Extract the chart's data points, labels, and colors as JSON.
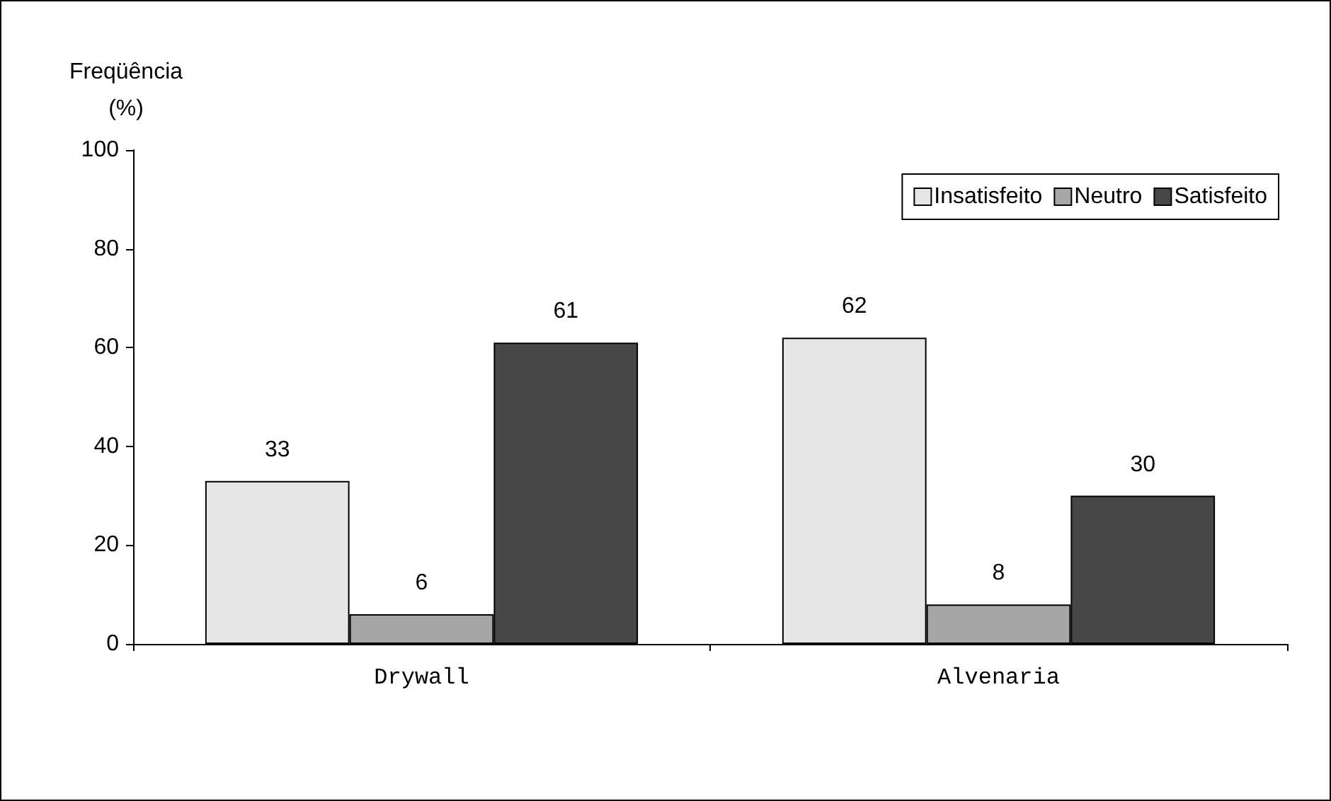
{
  "chart_data": {
    "type": "bar",
    "ylabel": "Freqüência (%)",
    "categories": [
      "Drywall",
      "Alvenaria"
    ],
    "series": [
      {
        "name": "Insatisfeito",
        "color": "#e6e6e6",
        "values": [
          33,
          62
        ]
      },
      {
        "name": "Neutro",
        "color": "#a6a6a6",
        "values": [
          6,
          8
        ]
      },
      {
        "name": "Satisfeito",
        "color": "#474747",
        "values": [
          61,
          30
        ]
      }
    ],
    "ylim": [
      0,
      100
    ],
    "yticks": [
      0,
      20,
      40,
      60,
      80,
      100
    ],
    "grid": false,
    "legend": "top right",
    "data_labels": true
  }
}
